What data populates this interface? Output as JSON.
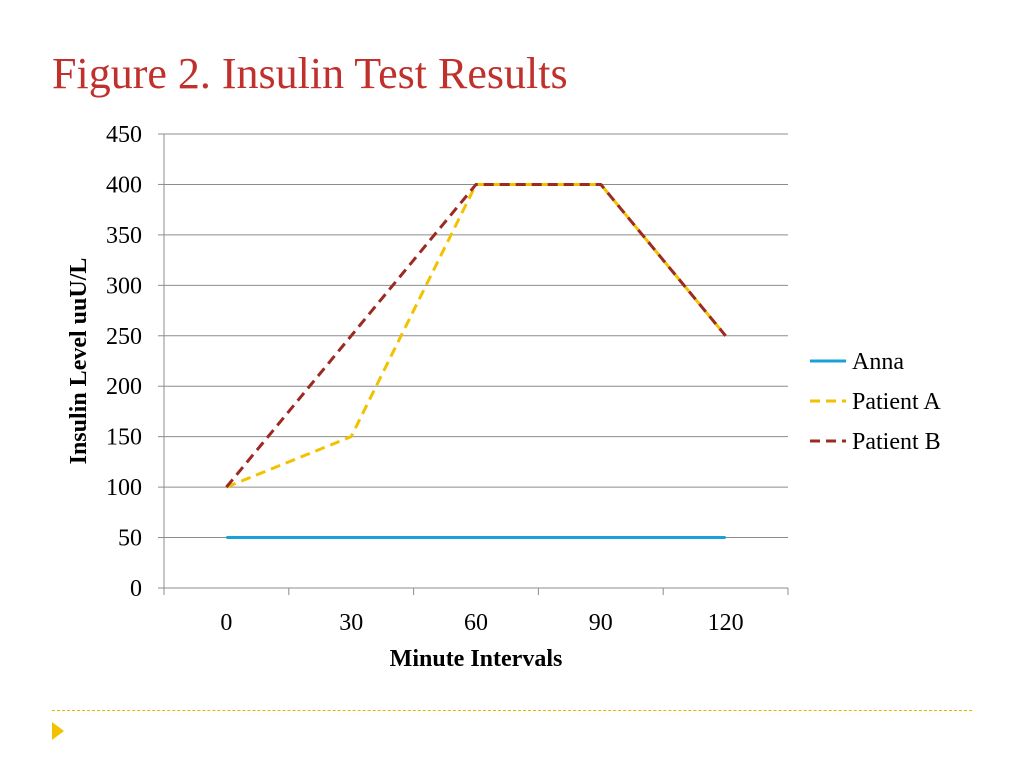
{
  "slide": {
    "title": "Figure 2. Insulin Test Results"
  },
  "chart_data": {
    "type": "line",
    "title": "",
    "xlabel": "Minute Intervals",
    "ylabel": "Insulin Level uuU/L",
    "x": [
      0,
      30,
      60,
      90,
      120
    ],
    "ylim": [
      0,
      450
    ],
    "yticks": [
      0,
      50,
      100,
      150,
      200,
      250,
      300,
      350,
      400,
      450
    ],
    "grid": true,
    "legend_position": "right",
    "series": [
      {
        "name": "Anna",
        "values": [
          50,
          50,
          50,
          50,
          50
        ],
        "color": "#1ba1d9",
        "dash": "solid"
      },
      {
        "name": "Patient A",
        "values": [
          100,
          150,
          400,
          400,
          250
        ],
        "color": "#f2c200",
        "dash": "dashed"
      },
      {
        "name": "Patient B",
        "values": [
          100,
          250,
          400,
          400,
          250
        ],
        "color": "#9b2a22",
        "dash": "dashed"
      }
    ]
  },
  "colors": {
    "title": "#c0302c",
    "accent": "#f2c200"
  }
}
